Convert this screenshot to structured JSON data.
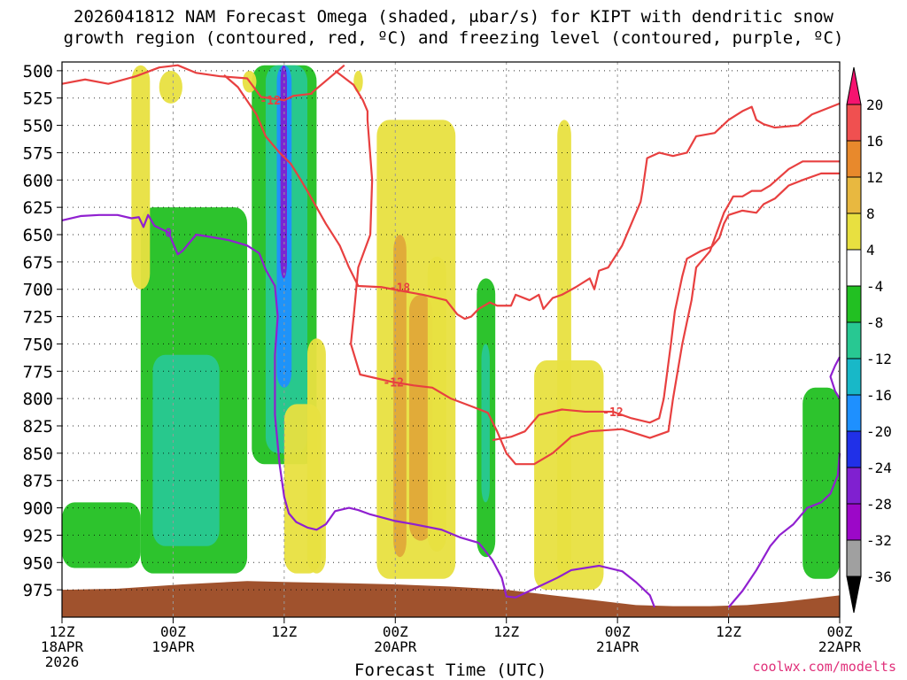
{
  "title_line1": "2026041812 NAM Forecast Omega (shaded, μbar/s) for KIPT with dendritic snow",
  "title_line2": "growth region (contoured, red, ºC) and freezing level (contoured, purple, ºC)",
  "credit": "coolwx.com/modelts",
  "chart_data": {
    "type": "heatmap",
    "xlabel": "Forecast Time (UTC)",
    "ylabel": "",
    "x_ticks": [
      {
        "hour": 0,
        "lines": [
          "12Z",
          "18APR",
          "2026"
        ]
      },
      {
        "hour": 12,
        "lines": [
          "00Z",
          "19APR"
        ]
      },
      {
        "hour": 24,
        "lines": [
          "12Z"
        ]
      },
      {
        "hour": 36,
        "lines": [
          "00Z",
          "20APR"
        ]
      },
      {
        "hour": 48,
        "lines": [
          "12Z"
        ]
      },
      {
        "hour": 60,
        "lines": [
          "00Z",
          "21APR"
        ]
      },
      {
        "hour": 72,
        "lines": [
          "12Z"
        ]
      },
      {
        "hour": 84,
        "lines": [
          "00Z",
          "22APR"
        ]
      }
    ],
    "xlim_hours": [
      0,
      84
    ],
    "y_ticks": [
      500,
      525,
      550,
      575,
      600,
      625,
      650,
      675,
      700,
      725,
      750,
      775,
      800,
      825,
      850,
      875,
      900,
      925,
      950,
      975
    ],
    "ylim_mb": [
      492,
      1000
    ],
    "colorbar": {
      "labels": [
        "20",
        "16",
        "12",
        "8",
        "4",
        "-4",
        "-8",
        "-12",
        "-16",
        "-20",
        "-24",
        "-28",
        "-32",
        "-36"
      ],
      "colors": [
        "#f5136f",
        "#f05050",
        "#e8892c",
        "#e8b840",
        "#e8e040",
        "#ffffff",
        "#22c022",
        "#28c892",
        "#18b8c8",
        "#1e90ff",
        "#2030e8",
        "#8020d0",
        "#9c08c8",
        "#a0a0a0",
        "#000000"
      ]
    },
    "shading_regions": [
      {
        "class": "green",
        "hour_range": [
          0,
          8.5
        ],
        "p_range": [
          895,
          955
        ]
      },
      {
        "class": "green",
        "hour_range": [
          8.5,
          20
        ],
        "p_range": [
          625,
          960
        ]
      },
      {
        "class": "teal",
        "hour_range": [
          9.8,
          17
        ],
        "p_range": [
          760,
          935
        ]
      },
      {
        "class": "green",
        "hour_range": [
          20.5,
          27.5
        ],
        "p_range": [
          495,
          860
        ]
      },
      {
        "class": "teal",
        "hour_range": [
          22,
          26.5
        ],
        "p_range": [
          495,
          850
        ]
      },
      {
        "class": "blue",
        "hour_range": [
          23.2,
          24.8
        ],
        "p_range": [
          495,
          790
        ]
      },
      {
        "class": "purple",
        "hour_range": [
          23.6,
          24.3
        ],
        "p_range": [
          495,
          690
        ]
      },
      {
        "class": "yellow",
        "hour_range": [
          7.5,
          9.5
        ],
        "p_range": [
          495,
          700
        ]
      },
      {
        "class": "yellow",
        "hour_range": [
          10.5,
          13
        ],
        "p_range": [
          500,
          530
        ]
      },
      {
        "class": "yellow",
        "hour_range": [
          19.5,
          21
        ],
        "p_range": [
          500,
          520
        ]
      },
      {
        "class": "yellow",
        "hour_range": [
          24,
          28
        ],
        "p_range": [
          805,
          960
        ]
      },
      {
        "class": "yellow",
        "hour_range": [
          26.5,
          28.5
        ],
        "p_range": [
          745,
          960
        ]
      },
      {
        "class": "yellow",
        "hour_range": [
          31.5,
          32.5
        ],
        "p_range": [
          500,
          520
        ]
      },
      {
        "class": "yellow",
        "hour_range": [
          34,
          42.5
        ],
        "p_range": [
          545,
          965
        ]
      },
      {
        "class": "orange",
        "hour_range": [
          35.8,
          37.2
        ],
        "p_range": [
          650,
          945
        ]
      },
      {
        "class": "orange",
        "hour_range": [
          37.5,
          40
        ],
        "p_range": [
          705,
          930
        ]
      },
      {
        "class": "yellow",
        "hour_range": [
          39.5,
          41.5
        ],
        "p_range": [
          670,
          940
        ]
      },
      {
        "class": "green",
        "hour_range": [
          44.8,
          46.8
        ],
        "p_range": [
          690,
          945
        ]
      },
      {
        "class": "teal",
        "hour_range": [
          45.3,
          46.2
        ],
        "p_range": [
          750,
          895
        ]
      },
      {
        "class": "yellow",
        "hour_range": [
          51,
          58.5
        ],
        "p_range": [
          765,
          975
        ]
      },
      {
        "class": "yellow",
        "hour_range": [
          53.5,
          55
        ],
        "p_range": [
          545,
          965
        ]
      },
      {
        "class": "green",
        "hour_range": [
          80,
          84
        ],
        "p_range": [
          790,
          965
        ]
      }
    ],
    "contours": [
      {
        "color": "#e84040",
        "label": "-12",
        "label_hour": 22.5,
        "label_p": 527,
        "points": [
          [
            0,
            512
          ],
          [
            2.5,
            508
          ],
          [
            5,
            512
          ],
          [
            8,
            505
          ],
          [
            10.5,
            497
          ],
          [
            12.5,
            495
          ],
          [
            14.5,
            502
          ],
          [
            17,
            505
          ],
          [
            20,
            507
          ],
          [
            21.5,
            524
          ],
          [
            24,
            527
          ],
          [
            25,
            523
          ],
          [
            27,
            521
          ],
          [
            27,
            520
          ],
          [
            30.5,
            495
          ]
        ]
      },
      {
        "color": "#e84040",
        "label": "-12",
        "label_hour": 35.8,
        "label_p": 785,
        "points": [
          [
            29.5,
            500
          ],
          [
            31.5,
            513
          ],
          [
            32.5,
            527
          ],
          [
            33,
            537
          ],
          [
            33,
            545
          ],
          [
            33.5,
            600
          ],
          [
            33.3,
            650
          ],
          [
            32,
            680
          ],
          [
            31.5,
            725
          ],
          [
            31.2,
            750
          ],
          [
            32.2,
            778
          ],
          [
            35.8,
            785
          ],
          [
            38,
            788
          ],
          [
            40,
            790
          ],
          [
            42,
            800
          ],
          [
            44.5,
            808
          ],
          [
            46,
            813
          ],
          [
            47,
            830
          ],
          [
            48,
            850
          ],
          [
            49,
            860
          ],
          [
            51,
            860
          ],
          [
            53,
            850
          ],
          [
            55,
            835
          ],
          [
            57,
            830
          ],
          [
            60.5,
            828
          ],
          [
            63.5,
            836
          ],
          [
            65.5,
            830
          ],
          [
            66,
            800
          ],
          [
            67,
            750
          ],
          [
            68,
            710
          ],
          [
            68.5,
            680
          ],
          [
            70,
            665
          ],
          [
            71.5,
            630
          ],
          [
            72.5,
            615
          ],
          [
            73.5,
            615
          ],
          [
            74.5,
            610
          ],
          [
            75.5,
            610
          ],
          [
            76.5,
            605
          ],
          [
            78.5,
            590
          ],
          [
            80,
            583
          ],
          [
            84,
            583
          ]
        ]
      },
      {
        "color": "#e84040",
        "label": "-18",
        "label_hour": 36.5,
        "label_p": 698,
        "points": [
          [
            17.5,
            504
          ],
          [
            19,
            515
          ],
          [
            21,
            540
          ],
          [
            22,
            560
          ],
          [
            23.5,
            575
          ],
          [
            24.7,
            585
          ],
          [
            25.8,
            600
          ],
          [
            26.5,
            610
          ],
          [
            27.5,
            625
          ],
          [
            28.5,
            640
          ],
          [
            30,
            660
          ],
          [
            31,
            680
          ],
          [
            32,
            697
          ],
          [
            34.5,
            698
          ],
          [
            37,
            702
          ],
          [
            39,
            705
          ],
          [
            41.5,
            710
          ],
          [
            42.7,
            723
          ],
          [
            43.5,
            727
          ],
          [
            44.2,
            725
          ],
          [
            45,
            718
          ],
          [
            46.2,
            712
          ],
          [
            47,
            715
          ],
          [
            48.5,
            715
          ],
          [
            49,
            705
          ],
          [
            50.5,
            710
          ],
          [
            51.5,
            705
          ],
          [
            52,
            718
          ],
          [
            53,
            708
          ],
          [
            54,
            705
          ],
          [
            55.5,
            698
          ],
          [
            57,
            690
          ],
          [
            57.5,
            700
          ],
          [
            58,
            683
          ],
          [
            59,
            680
          ],
          [
            60.5,
            660
          ],
          [
            61.5,
            640
          ],
          [
            62.5,
            620
          ],
          [
            62.7,
            610
          ],
          [
            63.2,
            580
          ],
          [
            64.5,
            575
          ],
          [
            66,
            578
          ],
          [
            67.5,
            575
          ],
          [
            68.5,
            560
          ],
          [
            70.5,
            557
          ],
          [
            72,
            545
          ],
          [
            73.5,
            537
          ],
          [
            74.5,
            533
          ],
          [
            75,
            545
          ],
          [
            75.8,
            549
          ],
          [
            77,
            552
          ],
          [
            79.5,
            550
          ],
          [
            81,
            540
          ],
          [
            84,
            530
          ]
        ]
      },
      {
        "color": "#e84040",
        "label": "-12",
        "label_hour": 59.5,
        "label_p": 812,
        "points": [
          [
            46.5,
            838
          ],
          [
            48.5,
            835
          ],
          [
            50,
            830
          ],
          [
            51.5,
            815
          ],
          [
            54,
            810
          ],
          [
            56.5,
            812
          ],
          [
            59.5,
            812
          ],
          [
            61.5,
            818
          ],
          [
            63.5,
            822
          ],
          [
            64.5,
            818
          ],
          [
            65,
            800
          ],
          [
            65.8,
            748
          ],
          [
            66.2,
            720
          ],
          [
            67,
            688
          ],
          [
            67.5,
            672
          ],
          [
            69,
            665
          ],
          [
            70.2,
            661
          ],
          [
            71,
            653
          ],
          [
            71.5,
            640
          ],
          [
            72,
            632
          ],
          [
            73.5,
            628
          ],
          [
            75,
            630
          ],
          [
            75.8,
            622
          ],
          [
            77,
            617
          ],
          [
            78.5,
            605
          ],
          [
            80,
            600
          ],
          [
            82,
            594
          ],
          [
            84,
            594
          ]
        ]
      },
      {
        "color": "#9020d0",
        "label": "0",
        "label_hour": 11.5,
        "label_p": 648,
        "points": [
          [
            0,
            637
          ],
          [
            2,
            633
          ],
          [
            4,
            632
          ],
          [
            6,
            632
          ],
          [
            7.5,
            635
          ],
          [
            8.3,
            634
          ],
          [
            8.8,
            643
          ],
          [
            9.3,
            632
          ],
          [
            10,
            642
          ],
          [
            11.5,
            648
          ],
          [
            12.5,
            668
          ],
          [
            13,
            665
          ],
          [
            14.5,
            650
          ],
          [
            16,
            652
          ],
          [
            18,
            655
          ],
          [
            20,
            660
          ],
          [
            21.3,
            667
          ],
          [
            22,
            682
          ],
          [
            23,
            697
          ],
          [
            23.3,
            725
          ],
          [
            23,
            760
          ],
          [
            23,
            815
          ],
          [
            23.5,
            860
          ],
          [
            24,
            890
          ],
          [
            24.5,
            905
          ],
          [
            25.3,
            913
          ],
          [
            26.5,
            918
          ],
          [
            27.5,
            920
          ],
          [
            28.5,
            915
          ],
          [
            29.5,
            903
          ],
          [
            31,
            900
          ],
          [
            32,
            902
          ],
          [
            33.3,
            906
          ],
          [
            36,
            912
          ],
          [
            38,
            915
          ],
          [
            41,
            920
          ],
          [
            43,
            927
          ],
          [
            45,
            932
          ],
          [
            45.5,
            937
          ],
          [
            46.5,
            948
          ],
          [
            47.5,
            964
          ],
          [
            48,
            981
          ],
          [
            49,
            982
          ],
          [
            50.5,
            976
          ],
          [
            52,
            970
          ],
          [
            53.5,
            964
          ],
          [
            55,
            957
          ],
          [
            58,
            953
          ],
          [
            60.5,
            958
          ],
          [
            62,
            968
          ],
          [
            63.5,
            980
          ],
          [
            64,
            991
          ]
        ]
      },
      {
        "color": "#9020d0",
        "label": "",
        "label_hour": 0,
        "label_p": 0,
        "points": [
          [
            72,
            991
          ],
          [
            73.5,
            976
          ],
          [
            75,
            957
          ],
          [
            76.5,
            935
          ],
          [
            77.5,
            925
          ],
          [
            79,
            915
          ],
          [
            80.5,
            900
          ],
          [
            82,
            895
          ],
          [
            83,
            887
          ],
          [
            83.8,
            870
          ],
          [
            84,
            850
          ]
        ]
      },
      {
        "color": "#9020d0",
        "label": "",
        "label_hour": 0,
        "label_p": 0,
        "points": [
          [
            84,
            762
          ],
          [
            83.5,
            770
          ],
          [
            83,
            780
          ],
          [
            83.5,
            793
          ],
          [
            84,
            800
          ]
        ]
      }
    ],
    "terrain": {
      "color": "#a0522d",
      "points": [
        [
          0,
          975
        ],
        [
          6,
          974
        ],
        [
          13,
          970
        ],
        [
          20,
          967
        ],
        [
          25,
          968
        ],
        [
          31,
          969
        ],
        [
          36,
          970
        ],
        [
          42,
          972
        ],
        [
          48,
          975
        ],
        [
          53,
          980
        ],
        [
          58,
          985
        ],
        [
          62,
          989
        ],
        [
          66,
          990
        ],
        [
          70,
          990
        ],
        [
          74,
          989
        ],
        [
          78,
          986
        ],
        [
          84,
          980
        ]
      ]
    }
  }
}
